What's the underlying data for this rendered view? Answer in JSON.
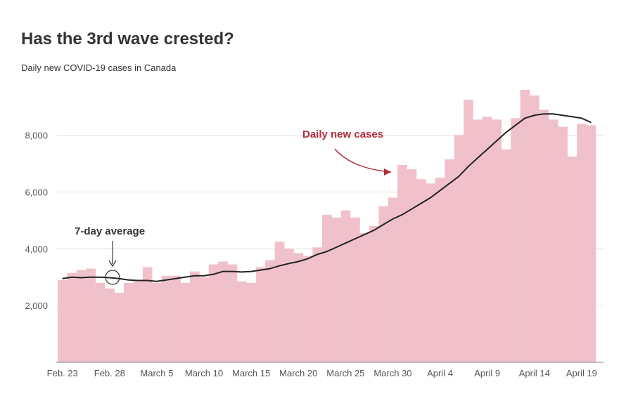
{
  "chart_data": {
    "type": "bar",
    "title": "Has the 3rd wave crested?",
    "subtitle": "Daily new COVID-19 cases in Canada",
    "start_date": "2021-02-23",
    "x_tick_labels": [
      "Feb. 23",
      "Feb. 28",
      "March 5",
      "March 10",
      "March 15",
      "March 20",
      "March 25",
      "March 30",
      "April 4",
      "April 9",
      "April 14",
      "April 19"
    ],
    "y_ticks": [
      2000,
      4000,
      6000,
      8000
    ],
    "y_tick_labels": [
      "2,000",
      "4,000",
      "6,000",
      "8,000"
    ],
    "ylim": [
      0,
      9300
    ],
    "grid": true,
    "series": [
      {
        "name": "Daily new cases",
        "type": "bar",
        "color": "#f0c1cb",
        "values": [
          2900,
          3150,
          3250,
          3300,
          2800,
          2600,
          2450,
          2800,
          2850,
          3350,
          2800,
          3050,
          3050,
          2800,
          3200,
          3000,
          3450,
          3550,
          3450,
          2850,
          2800,
          3350,
          3600,
          4250,
          4000,
          3850,
          3750,
          4050,
          5200,
          5100,
          5350,
          5100,
          4550,
          4800,
          5500,
          5800,
          6950,
          6800,
          6450,
          6300,
          6500,
          7150,
          8000,
          9250,
          8550,
          8650,
          8550,
          7500,
          8600,
          9600,
          9400,
          8900,
          8550,
          8300,
          7250,
          8400,
          8350
        ]
      },
      {
        "name": "7-day average",
        "type": "line",
        "color": "#222222",
        "values": [
          2950,
          3000,
          2980,
          3000,
          3000,
          2980,
          2950,
          2900,
          2880,
          2880,
          2850,
          2900,
          2950,
          3000,
          3050,
          3050,
          3100,
          3200,
          3200,
          3180,
          3200,
          3250,
          3300,
          3400,
          3480,
          3550,
          3650,
          3800,
          3900,
          4050,
          4200,
          4350,
          4500,
          4650,
          4850,
          5050,
          5200,
          5400,
          5600,
          5800,
          6050,
          6300,
          6550,
          6900,
          7200,
          7500,
          7800,
          8100,
          8350,
          8600,
          8700,
          8750,
          8750,
          8700,
          8650,
          8600,
          8450
        ]
      }
    ],
    "annotations": [
      {
        "text": "Daily new cases",
        "target_series": "Daily new cases"
      },
      {
        "text": "7-day average",
        "target_series": "7-day average"
      }
    ]
  }
}
